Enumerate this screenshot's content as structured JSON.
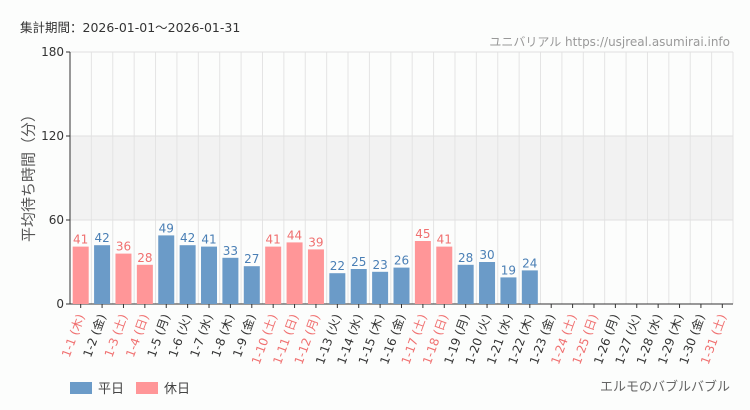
{
  "period_label": "集計期間：2026-01-01〜2026-01-31",
  "source": "ユニバリアル  https://usjreal.asumirai.info",
  "attraction": "エルモのバブルバブル",
  "colors": {
    "weekday": "#6b9bc8",
    "holiday": "#ff9698",
    "weekday_text": "#4a7fb5",
    "holiday_text": "#f07070",
    "band": "#f2f2f2"
  },
  "chart_data": {
    "type": "bar",
    "ylabel": "平均待ち時間（分）",
    "ylim": [
      0,
      180
    ],
    "yticks": [
      0,
      60,
      120,
      180
    ],
    "grid": true,
    "legend_position": "bottom-left",
    "legend": [
      {
        "name": "平日",
        "kind": "weekday"
      },
      {
        "name": "休日",
        "kind": "holiday"
      }
    ],
    "categories": [
      "1-1 (木)",
      "1-2 (金)",
      "1-3 (土)",
      "1-4 (日)",
      "1-5 (月)",
      "1-6 (火)",
      "1-7 (水)",
      "1-8 (木)",
      "1-9 (金)",
      "1-10 (土)",
      "1-11 (日)",
      "1-12 (月)",
      "1-13 (火)",
      "1-14 (水)",
      "1-15 (木)",
      "1-16 (金)",
      "1-17 (土)",
      "1-18 (日)",
      "1-19 (月)",
      "1-20 (火)",
      "1-21 (水)",
      "1-22 (木)",
      "1-23 (金)",
      "1-24 (土)",
      "1-25 (日)",
      "1-26 (月)",
      "1-27 (火)",
      "1-28 (水)",
      "1-29 (木)",
      "1-30 (金)",
      "1-31 (土)"
    ],
    "holiday": [
      true,
      false,
      true,
      true,
      false,
      false,
      false,
      false,
      false,
      true,
      true,
      true,
      false,
      false,
      false,
      false,
      true,
      true,
      false,
      false,
      false,
      false,
      false,
      true,
      true,
      false,
      false,
      false,
      false,
      false,
      true
    ],
    "values": [
      41,
      42,
      36,
      28,
      49,
      42,
      41,
      33,
      27,
      41,
      44,
      39,
      22,
      25,
      23,
      26,
      45,
      41,
      28,
      30,
      19,
      24,
      null,
      null,
      null,
      null,
      null,
      null,
      null,
      null,
      null
    ]
  }
}
